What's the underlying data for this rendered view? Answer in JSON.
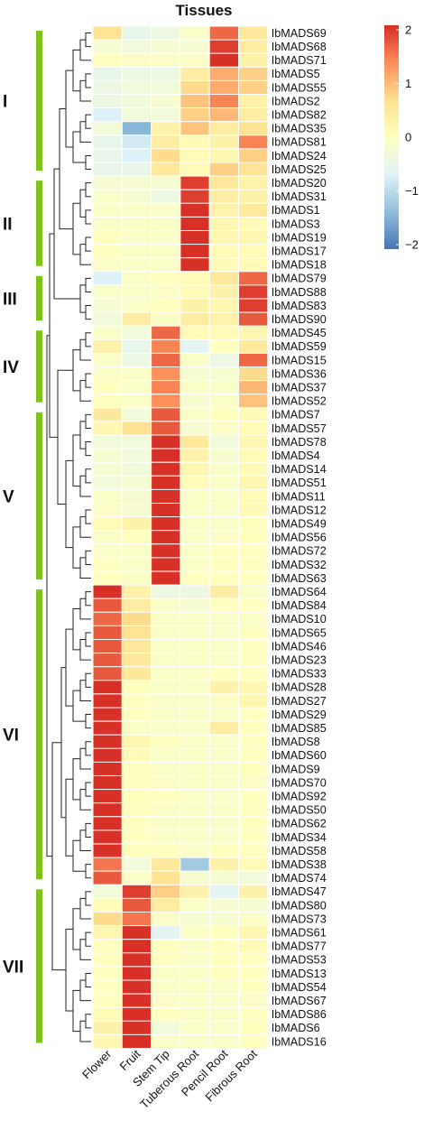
{
  "chart_data": {
    "type": "heatmap",
    "title": "Tissues",
    "columns": [
      "Flower",
      "Fruit",
      "Stem Tip",
      "Tuberous Root",
      "Pencil Root",
      "Fibrous Root"
    ],
    "rows": [
      "IbMADS69",
      "IbMADS68",
      "IbMADS71",
      "IbMADS5",
      "IbMADS55",
      "IbMADS2",
      "IbMADS82",
      "IbMADS35",
      "IbMADS81",
      "IbMADS24",
      "IbMADS25",
      "IbMADS20",
      "IbMADS31",
      "IbMADS1",
      "IbMADS3",
      "IbMADS19",
      "IbMADS17",
      "IbMADS18",
      "IbMADS79",
      "IbMADS88",
      "IbMADS83",
      "IbMADS90",
      "IbMADS45",
      "IbMADS59",
      "IbMADS15",
      "IbMADS36",
      "IbMADS37",
      "IbMADS52",
      "IbMADS7",
      "IbMADS57",
      "IbMADS78",
      "IbMADS4",
      "IbMADS14",
      "IbMADS51",
      "IbMADS11",
      "IbMADS12",
      "IbMADS49",
      "IbMADS56",
      "IbMADS72",
      "IbMADS32",
      "IbMADS63",
      "IbMADS64",
      "IbMADS84",
      "IbMADS10",
      "IbMADS65",
      "IbMADS46",
      "IbMADS23",
      "IbMADS33",
      "IbMADS28",
      "IbMADS27",
      "IbMADS29",
      "IbMADS85",
      "IbMADS8",
      "IbMADS60",
      "IbMADS9",
      "IbMADS70",
      "IbMADS92",
      "IbMADS50",
      "IbMADS62",
      "IbMADS34",
      "IbMADS58",
      "IbMADS38",
      "IbMADS74",
      "IbMADS47",
      "IbMADS80",
      "IbMADS73",
      "IbMADS61",
      "IbMADS77",
      "IbMADS53",
      "IbMADS13",
      "IbMADS54",
      "IbMADS67",
      "IbMADS86",
      "IbMADS6",
      "IbMADS16"
    ],
    "values": [
      [
        0.6,
        -0.5,
        -0.4,
        -0.1,
        1.6,
        0.5
      ],
      [
        -0.2,
        -0.3,
        -0.2,
        -0.2,
        1.9,
        0.4
      ],
      [
        0.0,
        -0.1,
        -0.1,
        -0.1,
        2.0,
        0.3
      ],
      [
        -0.5,
        -0.4,
        -0.4,
        0.4,
        1.1,
        0.8
      ],
      [
        -0.4,
        -0.3,
        -0.3,
        0.7,
        1.1,
        0.8
      ],
      [
        -0.4,
        -0.3,
        -0.2,
        0.9,
        1.4,
        0.3
      ],
      [
        -0.7,
        -0.3,
        -0.3,
        0.8,
        1.0,
        0.4
      ],
      [
        -0.3,
        -1.4,
        0.3,
        0.9,
        0.4,
        0.6
      ],
      [
        -0.5,
        -0.8,
        0.4,
        0.1,
        0.3,
        1.4
      ],
      [
        -0.5,
        -0.7,
        0.7,
        0.1,
        0.2,
        0.8
      ],
      [
        -0.5,
        -0.5,
        0.5,
        0.1,
        0.8,
        0.6
      ],
      [
        -0.2,
        -0.2,
        -0.2,
        1.9,
        0.5,
        0.3
      ],
      [
        -0.1,
        -0.2,
        -0.4,
        1.9,
        0.4,
        0.3
      ],
      [
        -0.1,
        -0.1,
        -0.1,
        2.0,
        0.3,
        0.5
      ],
      [
        -0.1,
        -0.1,
        -0.1,
        2.0,
        0.2,
        0.1
      ],
      [
        0.0,
        -0.1,
        -0.1,
        2.0,
        0.2,
        0.2
      ],
      [
        0.0,
        -0.1,
        -0.1,
        2.0,
        0.1,
        0.1
      ],
      [
        -0.1,
        -0.1,
        -0.1,
        2.0,
        0.1,
        0.1
      ],
      [
        -0.7,
        -0.1,
        0.0,
        0.1,
        0.5,
        1.6
      ],
      [
        -0.1,
        -0.1,
        -0.1,
        0.1,
        0.3,
        1.9
      ],
      [
        -0.2,
        -0.1,
        0.0,
        0.3,
        0.2,
        1.9
      ],
      [
        -0.3,
        0.4,
        -0.1,
        0.4,
        0.3,
        1.7
      ],
      [
        -0.1,
        -0.3,
        1.6,
        0.1,
        0.1,
        0.2
      ],
      [
        0.3,
        -0.5,
        1.4,
        -0.6,
        0.0,
        0.5
      ],
      [
        -0.1,
        -0.4,
        1.6,
        -0.1,
        -0.4,
        1.6
      ],
      [
        -0.1,
        -0.1,
        1.3,
        -0.2,
        -0.2,
        0.7
      ],
      [
        0.0,
        -0.1,
        1.4,
        -0.1,
        -0.1,
        1.0
      ],
      [
        0.0,
        -0.1,
        1.3,
        -0.2,
        -0.1,
        0.9
      ],
      [
        0.5,
        -0.3,
        1.7,
        -0.1,
        0.0,
        0.1
      ],
      [
        0.2,
        0.6,
        1.7,
        -0.2,
        -0.1,
        0.1
      ],
      [
        -0.3,
        -0.3,
        2.0,
        0.5,
        -0.3,
        0.2
      ],
      [
        -0.2,
        -0.3,
        2.0,
        0.3,
        -0.2,
        0.1
      ],
      [
        -0.2,
        -0.3,
        2.0,
        0.2,
        -0.1,
        0.1
      ],
      [
        -0.3,
        -0.2,
        2.0,
        0.1,
        -0.1,
        0.2
      ],
      [
        -0.1,
        -0.2,
        2.0,
        -0.1,
        -0.1,
        0.1
      ],
      [
        -0.1,
        -0.2,
        2.0,
        -0.1,
        -0.1,
        0.1
      ],
      [
        0.1,
        0.3,
        2.0,
        -0.1,
        -0.1,
        0.0
      ],
      [
        -0.1,
        0.0,
        2.0,
        -0.1,
        -0.1,
        0.0
      ],
      [
        -0.1,
        -0.1,
        2.0,
        -0.1,
        0.0,
        0.0
      ],
      [
        0.0,
        -0.1,
        2.0,
        -0.1,
        0.0,
        0.0
      ],
      [
        0.0,
        -0.1,
        2.0,
        0.0,
        0.0,
        0.0
      ],
      [
        2.0,
        0.3,
        -0.4,
        -0.4,
        0.4,
        -0.1
      ],
      [
        1.7,
        0.4,
        -0.1,
        -0.2,
        0.0,
        0.0
      ],
      [
        1.6,
        0.7,
        -0.1,
        -0.1,
        -0.1,
        -0.1
      ],
      [
        1.7,
        0.6,
        -0.1,
        -0.1,
        -0.1,
        0.0
      ],
      [
        1.7,
        0.5,
        -0.1,
        -0.1,
        -0.1,
        0.0
      ],
      [
        1.7,
        0.5,
        -0.1,
        -0.1,
        -0.1,
        0.0
      ],
      [
        1.7,
        0.5,
        -0.1,
        -0.1,
        0.0,
        0.0
      ],
      [
        2.0,
        0.0,
        -0.1,
        -0.1,
        0.3,
        0.2
      ],
      [
        2.0,
        0.0,
        -0.1,
        -0.1,
        -0.1,
        0.2
      ],
      [
        2.0,
        0.0,
        -0.1,
        -0.1,
        -0.1,
        0.0
      ],
      [
        2.0,
        -0.1,
        -0.1,
        -0.1,
        0.4,
        0.0
      ],
      [
        2.0,
        0.2,
        0.0,
        -0.1,
        -0.1,
        0.0
      ],
      [
        2.0,
        0.1,
        -0.1,
        -0.1,
        -0.1,
        0.0
      ],
      [
        2.0,
        0.0,
        -0.1,
        -0.1,
        -0.1,
        0.0
      ],
      [
        2.0,
        0.0,
        -0.1,
        -0.1,
        -0.1,
        -0.1
      ],
      [
        2.0,
        0.0,
        0.0,
        -0.1,
        -0.1,
        0.0
      ],
      [
        2.0,
        0.0,
        -0.1,
        -0.1,
        -0.1,
        0.0
      ],
      [
        2.0,
        0.0,
        -0.1,
        -0.1,
        -0.1,
        0.0
      ],
      [
        2.0,
        0.0,
        -0.1,
        -0.1,
        -0.1,
        0.0
      ],
      [
        2.0,
        0.0,
        0.0,
        -0.1,
        0.0,
        0.0
      ],
      [
        1.5,
        -0.3,
        0.5,
        -1.2,
        0.3,
        0.1
      ],
      [
        1.7,
        -0.1,
        0.6,
        -0.2,
        -0.2,
        -0.3
      ],
      [
        -0.3,
        1.9,
        0.8,
        0.3,
        -0.6,
        0.3
      ],
      [
        0.1,
        1.7,
        0.4,
        -0.1,
        -0.2,
        -0.2
      ],
      [
        0.7,
        1.5,
        -0.1,
        -0.2,
        -0.2,
        -0.1
      ],
      [
        0.2,
        2.0,
        -0.6,
        -0.1,
        0.0,
        0.2
      ],
      [
        0.0,
        2.0,
        0.0,
        -0.1,
        0.0,
        0.1
      ],
      [
        0.0,
        2.0,
        0.0,
        -0.1,
        0.0,
        0.0
      ],
      [
        0.0,
        2.0,
        -0.1,
        -0.1,
        0.0,
        0.0
      ],
      [
        0.0,
        2.0,
        -0.1,
        -0.1,
        -0.1,
        0.0
      ],
      [
        0.0,
        2.0,
        -0.1,
        -0.1,
        -0.1,
        -0.1
      ],
      [
        0.1,
        2.0,
        0.0,
        -0.1,
        -0.1,
        0.0
      ],
      [
        0.3,
        2.0,
        -0.3,
        -0.1,
        -0.1,
        0.0
      ],
      [
        0.2,
        2.0,
        -0.1,
        -0.1,
        -0.1,
        0.0
      ]
    ],
    "groups": [
      {
        "label": "I",
        "first": 0,
        "last": 10
      },
      {
        "label": "II",
        "first": 11,
        "last": 17
      },
      {
        "label": "III",
        "first": 18,
        "last": 21
      },
      {
        "label": "IV",
        "first": 22,
        "last": 27
      },
      {
        "label": "V",
        "first": 28,
        "last": 40
      },
      {
        "label": "VI",
        "first": 41,
        "last": 62
      },
      {
        "label": "VII",
        "first": 63,
        "last": 74
      }
    ],
    "colorbar": {
      "min": -2,
      "max": 2,
      "ticks": [
        "2",
        "1",
        "0",
        "−1",
        "−2"
      ],
      "colors": [
        "#4575b4",
        "#91bfdb",
        "#e0f3f8",
        "#ffffbf",
        "#fee090",
        "#fc8d59",
        "#d73027"
      ]
    }
  }
}
